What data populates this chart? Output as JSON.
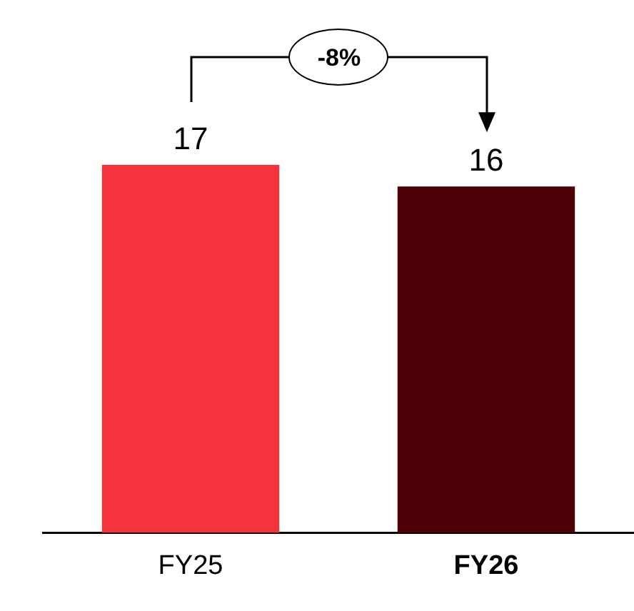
{
  "chart_data": {
    "type": "bar",
    "categories": [
      "FY25",
      "FY26"
    ],
    "values": [
      17,
      16
    ],
    "colors": [
      "#f4333c",
      "#4d0005"
    ],
    "data_labels": true,
    "annotations": [
      "-8%"
    ],
    "grid": false,
    "legend": false,
    "tick_labels": "x"
  }
}
